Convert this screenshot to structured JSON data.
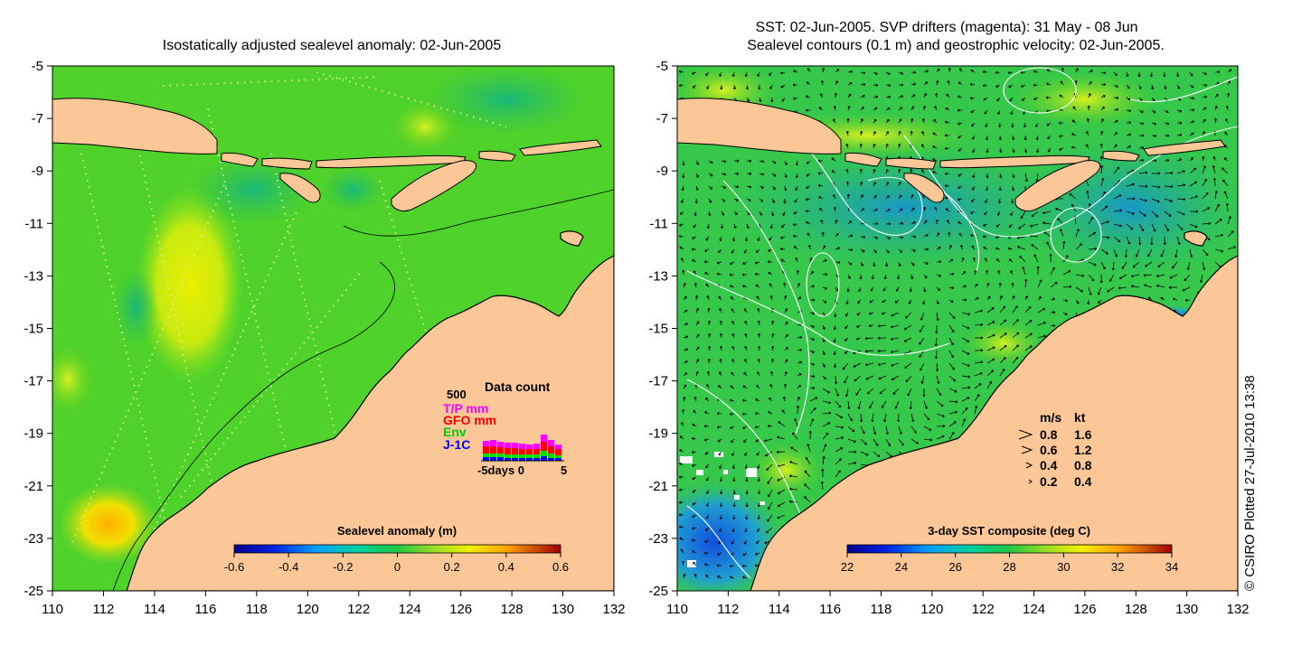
{
  "left_panel": {
    "title": "Isostatically adjusted sealevel anomaly: 02-Jun-2005",
    "x_ticks": [
      "110",
      "112",
      "114",
      "116",
      "118",
      "120",
      "122",
      "124",
      "126",
      "128",
      "130",
      "132"
    ],
    "y_ticks": [
      "-5",
      "-7",
      "-9",
      "-11",
      "-13",
      "-15",
      "-17",
      "-19",
      "-21",
      "-23",
      "-25"
    ],
    "colorbar": {
      "label": "Sealevel anomaly (m)",
      "ticks": [
        "-0.6",
        "-0.4",
        "-0.2",
        "0",
        "0.2",
        "0.4",
        "0.6"
      ],
      "range": [
        -0.6,
        0.6
      ]
    },
    "data_count": {
      "title": "Data count",
      "max_label": "500",
      "series": [
        {
          "name": "T/P mm",
          "color": "#ff00ff"
        },
        {
          "name": "GFO mm",
          "color": "#ff0000"
        },
        {
          "name": "Env",
          "color": "#00dd00"
        },
        {
          "name": "J-1C",
          "color": "#0000ff"
        }
      ],
      "x_axis_label": "-5days 0",
      "x_axis_end": "5"
    }
  },
  "right_panel": {
    "title_line1": "SST: 02-Jun-2005. SVP drifters (magenta): 31 May - 08 Jun",
    "title_line2": "Sealevel contours (0.1 m) and geostrophic velocity: 02-Jun-2005.",
    "x_ticks": [
      "110",
      "112",
      "114",
      "116",
      "118",
      "120",
      "122",
      "124",
      "126",
      "128",
      "130",
      "132"
    ],
    "y_ticks": [
      "-5",
      "-7",
      "-9",
      "-11",
      "-13",
      "-15",
      "-17",
      "-19",
      "-21",
      "-23",
      "-25"
    ],
    "colorbar": {
      "label": "3-day SST composite (deg C)",
      "ticks": [
        "22",
        "24",
        "26",
        "28",
        "30",
        "32",
        "34"
      ],
      "range": [
        22,
        34
      ]
    },
    "velocity_legend": {
      "header_ms": "m/s",
      "header_kt": "kt",
      "rows": [
        {
          "ms": "0.8",
          "kt": "1.6"
        },
        {
          "ms": "0.6",
          "kt": "1.2"
        },
        {
          "ms": "0.4",
          "kt": "0.8"
        },
        {
          "ms": "0.2",
          "kt": "0.4"
        }
      ]
    }
  },
  "credit": "© CSIRO Plotted 27-Jul-2010 13:38",
  "colors": {
    "land": "#fbc797",
    "ocean_base": "#4fd22a",
    "coast": "#000000",
    "contour": "#ffffff"
  }
}
